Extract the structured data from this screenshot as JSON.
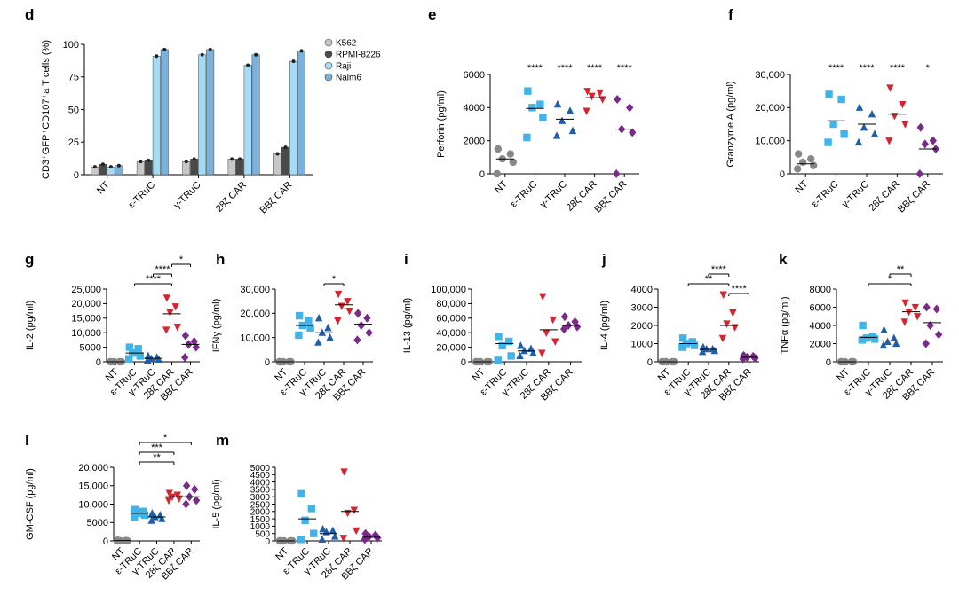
{
  "figure": {
    "colors": {
      "NT": "#888888",
      "eTRuC": "#3fb4e8",
      "gTRuC": "#1f5fa8",
      "28CAR": "#d9232e",
      "BBCAR": "#7a2a8a",
      "K562": "#c8c8c8",
      "RPMI-8226": "#4a4a4a",
      "Raji": "#a5dcf5",
      "Nalm6": "#7ab2dc"
    }
  },
  "chart_data": [
    {
      "id": "d",
      "panel_label": "d",
      "type": "bar",
      "ylabel": "CD3⁺GFP⁺CD107⁺a T cells (%)",
      "ylim": [
        0,
        100
      ],
      "yticks": [
        "0",
        "25",
        "50",
        "75",
        "100"
      ],
      "ytick_values": [
        0,
        25,
        50,
        75,
        100
      ],
      "categories": [
        "NT",
        "ε-TRuC",
        "γ-TRuC",
        "28ζ CAR",
        "BBζ CAR"
      ],
      "legend": [
        "K562",
        "RPMI-8226",
        "Raji",
        "Nalm6"
      ],
      "series": [
        {
          "name": "K562",
          "values": [
            6,
            10,
            10,
            12,
            16
          ]
        },
        {
          "name": "RPMI-8226",
          "values": [
            8,
            11,
            12,
            12,
            21
          ]
        },
        {
          "name": "Raji",
          "values": [
            6,
            91,
            92,
            84,
            87
          ]
        },
        {
          "name": "Nalm6",
          "values": [
            7,
            96,
            96,
            92,
            95
          ]
        }
      ]
    },
    {
      "id": "e",
      "panel_label": "e",
      "type": "scatter",
      "ylabel": "Perforin (pg/ml)",
      "ylim": [
        0,
        6000
      ],
      "yticks": [
        "0",
        "2000",
        "4000",
        "6000"
      ],
      "ytick_values": [
        0,
        2000,
        4000,
        6000
      ],
      "categories": [
        "NT",
        "ε-TRuC",
        "γ-TRuC",
        "28ζ CAR",
        "BBζ CAR"
      ],
      "groups": [
        {
          "name": "NT",
          "values": [
            1500,
            1200,
            900,
            700,
            0
          ],
          "mean": 900
        },
        {
          "name": "ε-TRuC",
          "values": [
            5000,
            4200,
            4000,
            3400,
            2200
          ],
          "mean": 3950
        },
        {
          "name": "γ-TRuC",
          "values": [
            4200,
            3800,
            3200,
            2600,
            2300
          ],
          "mean": 3300
        },
        {
          "name": "28ζ CAR",
          "values": [
            5000,
            4900,
            4700,
            4500,
            3800
          ],
          "mean": 4600
        },
        {
          "name": "BBζ CAR",
          "values": [
            4500,
            4000,
            2700,
            2500,
            0
          ],
          "mean": 2700
        }
      ],
      "significance": [
        {
          "label": "****",
          "group": 1
        },
        {
          "label": "****",
          "group": 2
        },
        {
          "label": "****",
          "group": 3
        },
        {
          "label": "****",
          "group": 4
        }
      ],
      "brackets": []
    },
    {
      "id": "f",
      "panel_label": "f",
      "type": "scatter",
      "ylabel": "Granzyme A (pg/ml)",
      "ylim": [
        0,
        30000
      ],
      "yticks": [
        "0",
        "10,000",
        "20,000",
        "30,000"
      ],
      "ytick_values": [
        0,
        10000,
        20000,
        30000
      ],
      "categories": [
        "NT",
        "ε-TRuC",
        "γ-TRuC",
        "28ζ CAR",
        "BBζ CAR"
      ],
      "groups": [
        {
          "name": "NT",
          "values": [
            6000,
            4500,
            3500,
            2500,
            1500
          ],
          "mean": 3000
        },
        {
          "name": "ε-TRuC",
          "values": [
            24000,
            22500,
            15000,
            12000,
            9500
          ],
          "mean": 16000
        },
        {
          "name": "γ-TRuC",
          "values": [
            20000,
            18000,
            14000,
            12000,
            9500
          ],
          "mean": 15000
        },
        {
          "name": "28ζ CAR",
          "values": [
            26000,
            21000,
            17500,
            15000,
            10000
          ],
          "mean": 18000
        },
        {
          "name": "BBζ CAR",
          "values": [
            14000,
            10000,
            9000,
            7500,
            0
          ],
          "mean": 7500
        }
      ],
      "significance": [
        {
          "label": "****",
          "group": 1
        },
        {
          "label": "****",
          "group": 2
        },
        {
          "label": "****",
          "group": 3
        },
        {
          "label": "*",
          "group": 4
        }
      ],
      "brackets": []
    },
    {
      "id": "g",
      "panel_label": "g",
      "type": "scatter",
      "ylabel": "IL-2 (pg/ml)",
      "ylim": [
        0,
        25000
      ],
      "yticks": [
        "0",
        "5000",
        "10,000",
        "15,000",
        "20,000",
        "25,000"
      ],
      "ytick_values": [
        0,
        5000,
        10000,
        15000,
        20000,
        25000
      ],
      "categories": [
        "NT",
        "ε-TRuC",
        "γ-TRuC",
        "28ζ CAR",
        "BBζ CAR"
      ],
      "groups": [
        {
          "name": "NT",
          "values": [
            0,
            0,
            0,
            0,
            0
          ],
          "mean": 0
        },
        {
          "name": "ε-TRuC",
          "values": [
            5000,
            4500,
            3000,
            2000,
            1000
          ],
          "mean": 3000
        },
        {
          "name": "γ-TRuC",
          "values": [
            2000,
            1500,
            1000,
            800,
            500
          ],
          "mean": 1200
        },
        {
          "name": "28ζ CAR",
          "values": [
            22000,
            19000,
            17000,
            12000,
            11000
          ],
          "mean": 16500
        },
        {
          "name": "BBζ CAR",
          "values": [
            9000,
            7000,
            6000,
            5000,
            1500
          ],
          "mean": 6000
        }
      ],
      "significance": [],
      "brackets": [
        {
          "label": "****",
          "from": 1,
          "to": 3,
          "level": 0
        },
        {
          "label": "****",
          "from": 2,
          "to": 3,
          "level": 1
        },
        {
          "label": "*",
          "from": 3,
          "to": 4,
          "level": 2
        }
      ]
    },
    {
      "id": "h",
      "panel_label": "h",
      "type": "scatter",
      "ylabel": "IFNγ (pg/ml)",
      "ylim": [
        0,
        30000
      ],
      "yticks": [
        "0",
        "10,000",
        "20,000",
        "30,000"
      ],
      "ytick_values": [
        0,
        10000,
        20000,
        30000
      ],
      "categories": [
        "NT",
        "ε-TRuC",
        "γ-TRuC",
        "28ζ CAR",
        "BBζ CAR"
      ],
      "groups": [
        {
          "name": "NT",
          "values": [
            0,
            0,
            0,
            0,
            0
          ],
          "mean": 0
        },
        {
          "name": "ε-TRuC",
          "values": [
            19000,
            17000,
            15000,
            14000,
            11000
          ],
          "mean": 15000
        },
        {
          "name": "γ-TRuC",
          "values": [
            18000,
            14000,
            12000,
            10000,
            8000
          ],
          "mean": 12000
        },
        {
          "name": "28ζ CAR",
          "values": [
            28000,
            25000,
            23000,
            21000,
            17000
          ],
          "mean": 23500
        },
        {
          "name": "BBζ CAR",
          "values": [
            20000,
            18000,
            15000,
            12000,
            9000
          ],
          "mean": 15500
        }
      ],
      "significance": [],
      "brackets": [
        {
          "label": "*",
          "from": 2,
          "to": 3,
          "level": 0
        }
      ]
    },
    {
      "id": "i",
      "panel_label": "i",
      "type": "scatter",
      "ylabel": "IL-13 (pg/ml)",
      "ylim": [
        0,
        100000
      ],
      "yticks": [
        "0",
        "20,000",
        "40,000",
        "60,000",
        "80,000",
        "100,000"
      ],
      "ytick_values": [
        0,
        20000,
        40000,
        60000,
        80000,
        100000
      ],
      "categories": [
        "NT",
        "ε-TRuC",
        "γ-TRuC",
        "28ζ CAR",
        "BBζ CAR"
      ],
      "groups": [
        {
          "name": "NT",
          "values": [
            0,
            0,
            0,
            0,
            0
          ],
          "mean": 0
        },
        {
          "name": "ε-TRuC",
          "values": [
            35000,
            28000,
            22000,
            8000,
            2000
          ],
          "mean": 25000
        },
        {
          "name": "γ-TRuC",
          "values": [
            22000,
            18000,
            15000,
            12000,
            8000
          ],
          "mean": 15000
        },
        {
          "name": "28ζ CAR",
          "values": [
            90000,
            58000,
            40000,
            28000,
            12000
          ],
          "mean": 44000
        },
        {
          "name": "BBζ CAR",
          "values": [
            62000,
            55000,
            50000,
            48000,
            45000
          ],
          "mean": 50000
        }
      ],
      "significance": [],
      "brackets": []
    },
    {
      "id": "j",
      "panel_label": "j",
      "type": "scatter",
      "ylabel": "IL-4 (pg/ml)",
      "ylim": [
        0,
        4000
      ],
      "yticks": [
        "0",
        "1000",
        "2000",
        "3000",
        "4000"
      ],
      "ytick_values": [
        0,
        1000,
        2000,
        3000,
        4000
      ],
      "categories": [
        "NT",
        "ε-TRuC",
        "γ-TRuC",
        "28ζ CAR",
        "BBζ CAR"
      ],
      "groups": [
        {
          "name": "NT",
          "values": [
            0,
            0,
            0,
            0,
            0
          ],
          "mean": 0
        },
        {
          "name": "ε-TRuC",
          "values": [
            1300,
            1100,
            1000,
            900,
            800
          ],
          "mean": 1000
        },
        {
          "name": "γ-TRuC",
          "values": [
            800,
            700,
            700,
            600,
            550
          ],
          "mean": 680
        },
        {
          "name": "28ζ CAR",
          "values": [
            3700,
            2700,
            2100,
            1900,
            1300
          ],
          "mean": 2000
        },
        {
          "name": "BBζ CAR",
          "values": [
            350,
            300,
            250,
            200,
            150
          ],
          "mean": 250
        }
      ],
      "significance": [],
      "brackets": [
        {
          "label": "**",
          "from": 1,
          "to": 3,
          "level": 0
        },
        {
          "label": "****",
          "from": 2,
          "to": 3,
          "level": 1
        },
        {
          "label": "****",
          "from": 3,
          "to": 4,
          "level": -1
        }
      ]
    },
    {
      "id": "k",
      "panel_label": "k",
      "type": "scatter",
      "ylabel": "TNFα (pg/ml)",
      "ylim": [
        0,
        8000
      ],
      "yticks": [
        "0",
        "2000",
        "4000",
        "6000",
        "8000"
      ],
      "ytick_values": [
        0,
        2000,
        4000,
        6000,
        8000
      ],
      "categories": [
        "NT",
        "ε-TRuC",
        "γ-TRuC",
        "28ζ CAR",
        "BBζ CAR"
      ],
      "groups": [
        {
          "name": "NT",
          "values": [
            0,
            0,
            0,
            0,
            0
          ],
          "mean": 0
        },
        {
          "name": "ε-TRuC",
          "values": [
            4000,
            2800,
            2600,
            2500,
            2400
          ],
          "mean": 2700
        },
        {
          "name": "γ-TRuC",
          "values": [
            3500,
            2600,
            2200,
            2000,
            1800
          ],
          "mean": 2300
        },
        {
          "name": "28ζ CAR",
          "values": [
            6500,
            6000,
            5500,
            5000,
            4400
          ],
          "mean": 5500
        },
        {
          "name": "BBζ CAR",
          "values": [
            6000,
            5800,
            4000,
            3000,
            2000
          ],
          "mean": 4300
        }
      ],
      "significance": [],
      "brackets": [
        {
          "label": "*",
          "from": 1,
          "to": 3,
          "level": 0
        },
        {
          "label": "**",
          "from": 2,
          "to": 3,
          "level": 1
        }
      ]
    },
    {
      "id": "l",
      "panel_label": "l",
      "type": "scatter",
      "ylabel": "GM-CSF (pg/ml)",
      "ylim": [
        0,
        20000
      ],
      "yticks": [
        "0",
        "5000",
        "10,000",
        "15,000",
        "20,000"
      ],
      "ytick_values": [
        0,
        5000,
        10000,
        15000,
        20000
      ],
      "categories": [
        "NT",
        "ε-TRuC",
        "γ-TRuC",
        "28ζ CAR",
        "BBζ CAR"
      ],
      "groups": [
        {
          "name": "NT",
          "values": [
            200,
            100,
            0,
            0,
            0
          ],
          "mean": 100
        },
        {
          "name": "ε-TRuC",
          "values": [
            8500,
            8000,
            7500,
            7000,
            6500
          ],
          "mean": 7500
        },
        {
          "name": "γ-TRuC",
          "values": [
            7500,
            7000,
            6500,
            6000,
            5500
          ],
          "mean": 6500
        },
        {
          "name": "28ζ CAR",
          "values": [
            13000,
            12500,
            12000,
            11500,
            11000
          ],
          "mean": 12000
        },
        {
          "name": "BBζ CAR",
          "values": [
            15000,
            14000,
            12000,
            11000,
            10000
          ],
          "mean": 12000
        }
      ],
      "significance": [],
      "brackets": [
        {
          "label": "**",
          "from": 1,
          "to": 3,
          "level": 0
        },
        {
          "label": "***",
          "from": 1,
          "to": 3,
          "level": 1
        },
        {
          "label": "*",
          "from": 1,
          "to": 4,
          "level": 2
        }
      ]
    },
    {
      "id": "m",
      "panel_label": "m",
      "type": "scatter",
      "ylabel": "IL-5 (pg/ml)",
      "ylim": [
        0,
        5000
      ],
      "yticks": [
        "0",
        "500",
        "1000",
        "1500",
        "2000",
        "2500",
        "3000",
        "3500",
        "4000",
        "4500",
        "5000"
      ],
      "ytick_values": [
        0,
        500,
        1000,
        1500,
        2000,
        2500,
        3000,
        3500,
        4000,
        4500,
        5000
      ],
      "categories": [
        "NT",
        "ε-TRuC",
        "γ-TRuC",
        "28ζ CAR",
        "BBζ CAR"
      ],
      "groups": [
        {
          "name": "NT",
          "values": [
            0,
            0,
            0,
            0,
            0
          ],
          "mean": 0
        },
        {
          "name": "ε-TRuC",
          "values": [
            3200,
            2200,
            1400,
            500,
            100
          ],
          "mean": 1500
        },
        {
          "name": "γ-TRuC",
          "values": [
            800,
            700,
            600,
            300,
            100
          ],
          "mean": 500
        },
        {
          "name": "28ζ CAR",
          "values": [
            4700,
            2100,
            1900,
            700,
            200
          ],
          "mean": 2000
        },
        {
          "name": "BBζ CAR",
          "values": [
            500,
            400,
            300,
            200,
            100
          ],
          "mean": 250
        }
      ],
      "significance": [],
      "brackets": []
    }
  ]
}
